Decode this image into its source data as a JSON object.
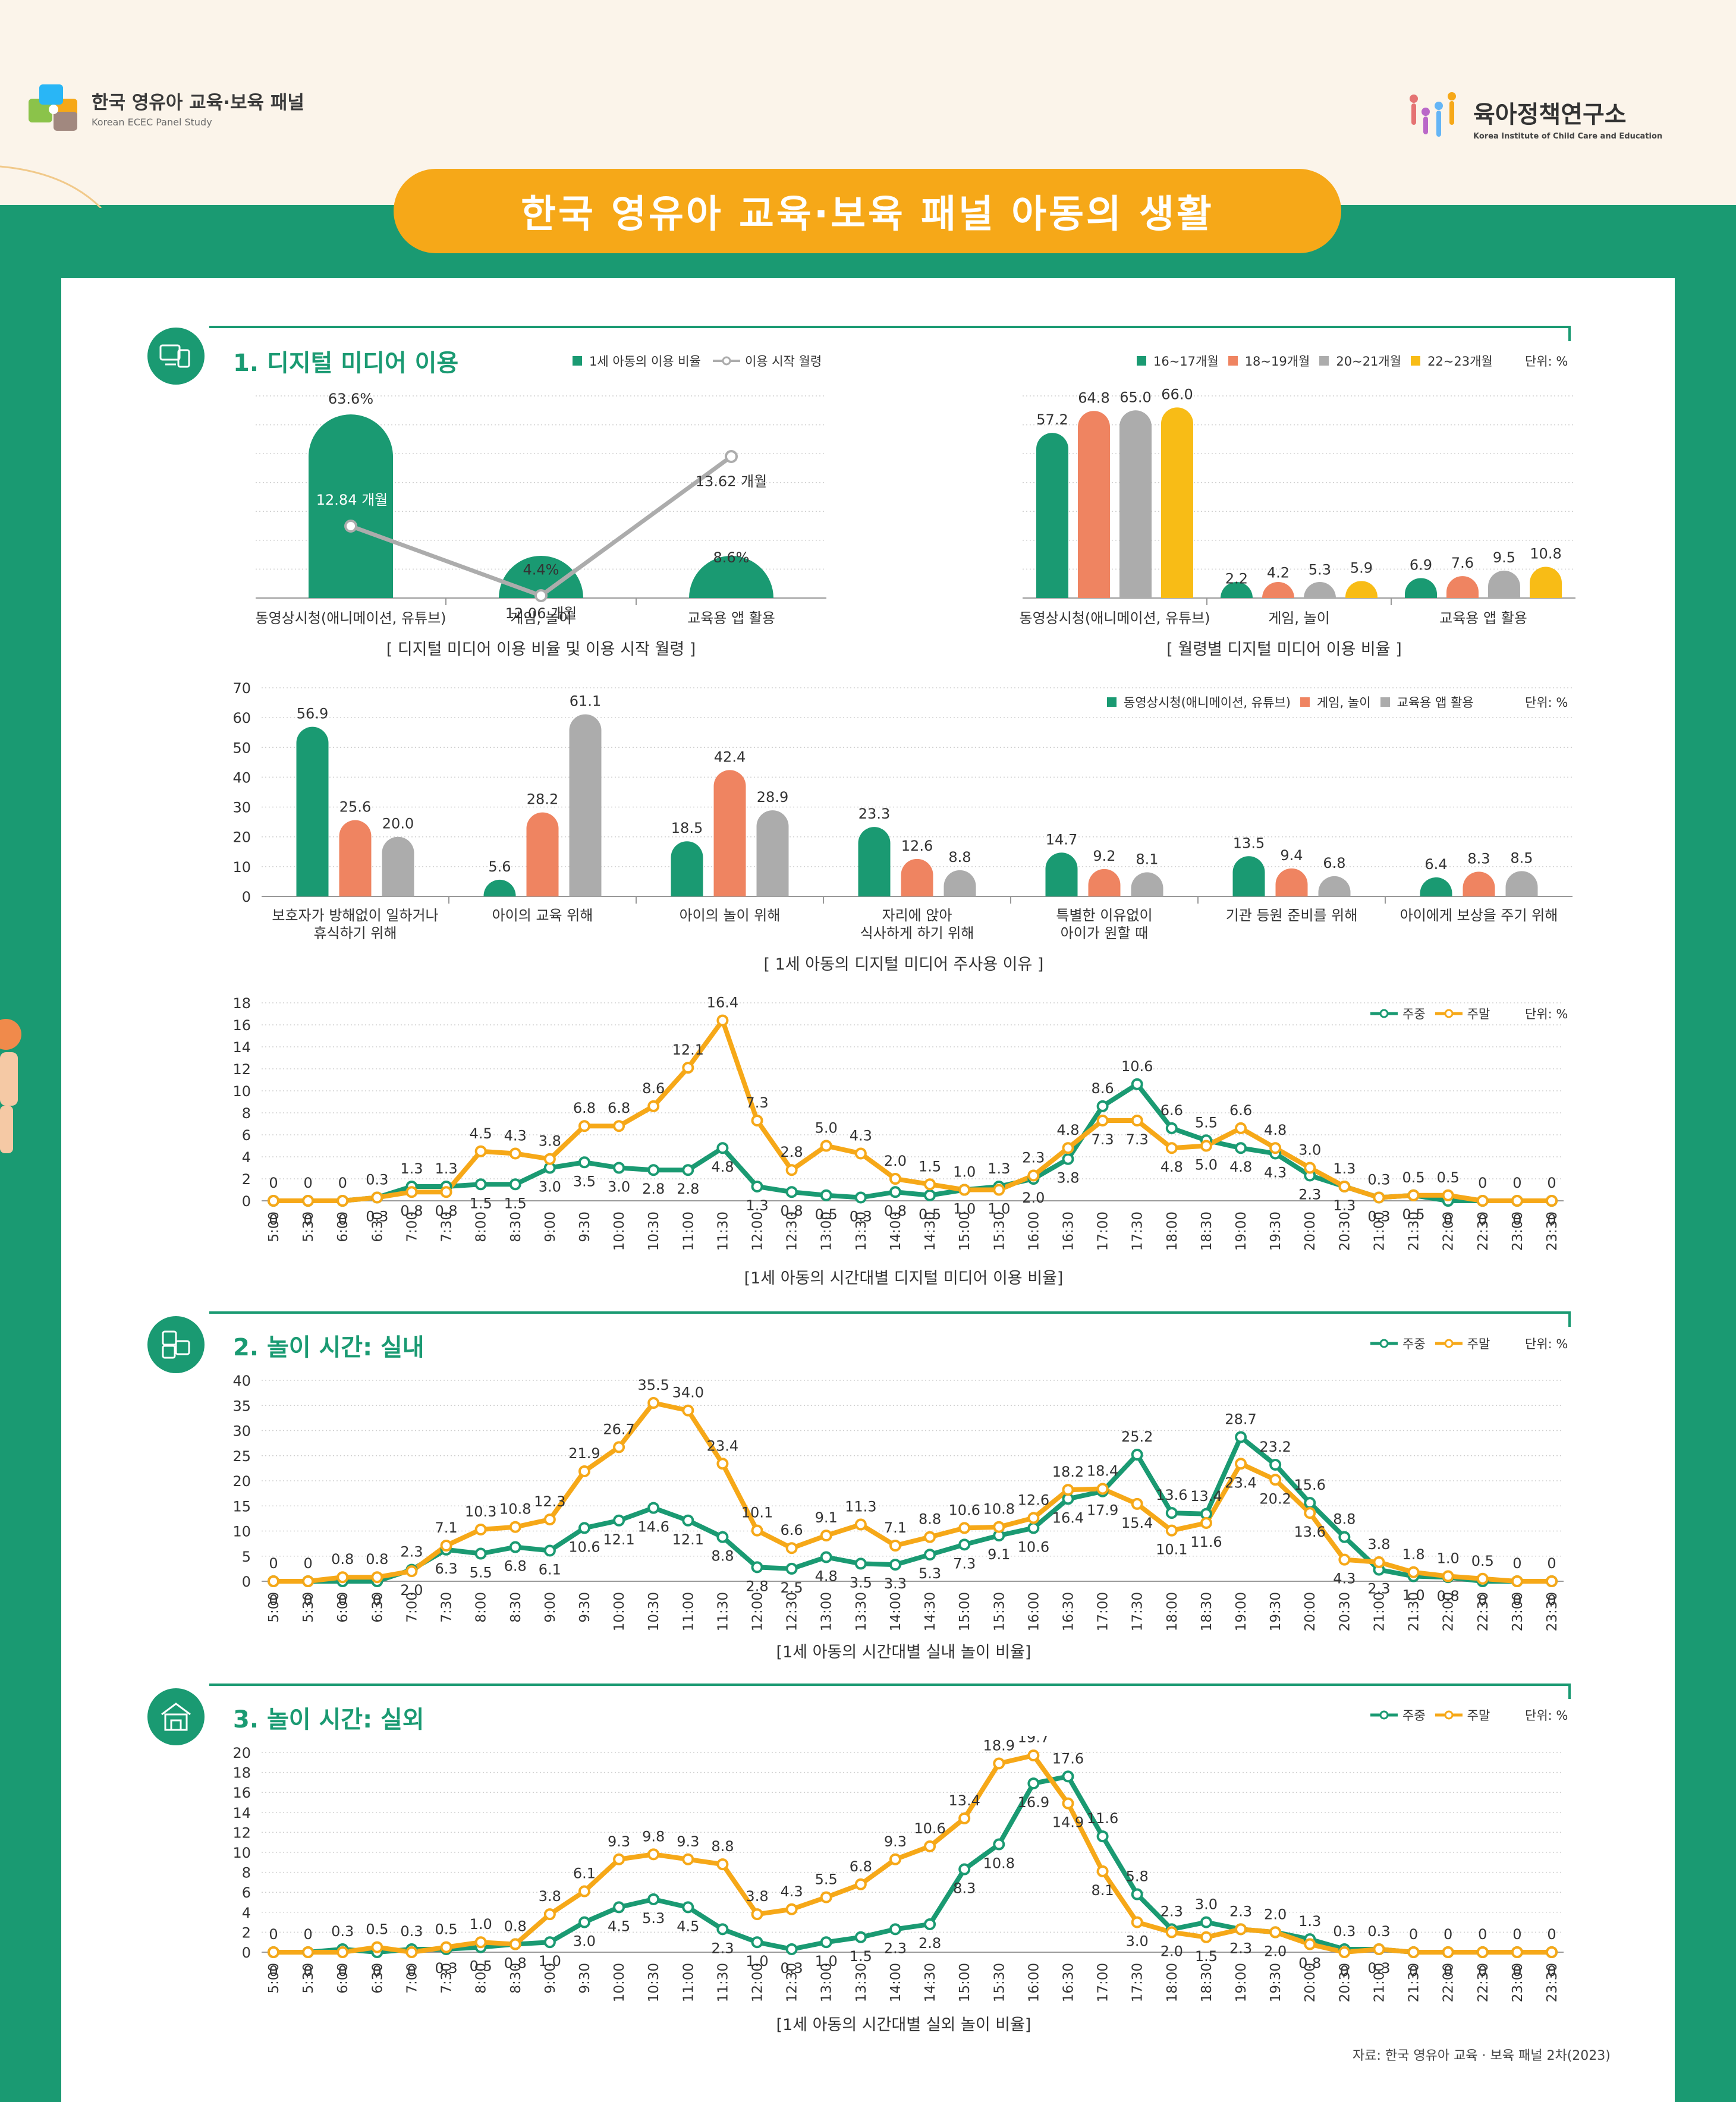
{
  "header": {
    "panel_logo_title": "한국 영유아 교육·보육 패널",
    "panel_logo_subtitle": "Korean ECEC Panel Study",
    "institute_logo_title": "육아정책연구소",
    "institute_logo_subtitle": "Korea Institute of Child Care and Education",
    "main_title": "한국 영유아 교육·보육 패널 아동의 생활"
  },
  "sections": {
    "s1": "1. 디지털 미디어 이용",
    "s2": "2. 놀이 시간: 실내",
    "s3": "3. 놀이 시간: 실외"
  },
  "colors": {
    "green": "#1a9a72",
    "orange": "#f6a818",
    "salmon": "#ef8461",
    "gray": "#acacac",
    "yellow": "#f8bc16"
  },
  "source": "자료: 한국 영유아 교육 · 보육 패널 2차(2023)",
  "chart_data": [
    {
      "id": "usage_rate_age",
      "type": "bar",
      "title": "[ 디지털 미디어 이용 비율 및 이용 시작 월령 ]",
      "categories": [
        "동영상시청(애니메이션, 유튜브)",
        "게임, 놀이",
        "교육용 앱 활용"
      ],
      "legend": [
        "1세 아동의 이용 비율",
        "이용 시작 월령"
      ],
      "series": [
        {
          "name": "1세 아동의 이용 비율",
          "values": [
            63.6,
            4.4,
            8.6
          ],
          "labels": [
            "63.6%",
            "4.4%",
            "8.6%"
          ]
        },
        {
          "name": "이용 시작 월령",
          "values": [
            12.84,
            12.06,
            13.62
          ],
          "labels": [
            "12.84 개월",
            "12.06 개월",
            "13.62 개월"
          ]
        }
      ],
      "ylim": [
        0,
        70
      ]
    },
    {
      "id": "usage_by_month_age",
      "type": "bar",
      "title": "[ 월령별 디지털 미디어 이용 비율 ]",
      "unit": "단위: %",
      "categories": [
        "동영상시청(애니메이션, 유튜브)",
        "게임, 놀이",
        "교육용 앱 활용"
      ],
      "series": [
        {
          "name": "16~17개월",
          "values": [
            57.2,
            2.2,
            6.9
          ]
        },
        {
          "name": "18~19개월",
          "values": [
            64.8,
            4.2,
            7.6
          ]
        },
        {
          "name": "20~21개월",
          "values": [
            65.0,
            5.3,
            9.5
          ]
        },
        {
          "name": "22~23개월",
          "values": [
            66.0,
            5.9,
            10.8
          ]
        }
      ],
      "ylim": [
        0,
        70
      ]
    },
    {
      "id": "reasons",
      "type": "bar",
      "title": "[ 1세 아동의 디지털 미디어 주사용 이유 ]",
      "unit": "단위: %",
      "categories": [
        "보호자가 방해없이 일하거나\n휴식하기 위해",
        "아이의 교육 위해",
        "아이의 놀이 위해",
        "자리에 앉아\n식사하게 하기 위해",
        "특별한 이유없이\n아이가 원할 때",
        "기관 등원 준비를 위해",
        "아이에게 보상을 주기 위해"
      ],
      "series": [
        {
          "name": "동영상시청(애니메이션, 유튜브)",
          "values": [
            56.9,
            5.6,
            18.5,
            23.3,
            14.7,
            13.5,
            6.4
          ]
        },
        {
          "name": "게임, 놀이",
          "values": [
            25.6,
            28.2,
            42.4,
            12.6,
            9.2,
            9.4,
            8.3
          ]
        },
        {
          "name": "교육용 앱 활용",
          "values": [
            20.0,
            61.1,
            28.9,
            8.8,
            8.1,
            6.8,
            8.5
          ]
        }
      ],
      "ylim": [
        0,
        70
      ],
      "yticks": [
        0,
        10,
        20,
        30,
        40,
        50,
        60,
        70
      ]
    },
    {
      "id": "media_time",
      "type": "line",
      "title": "[1세 아동의 시간대별 디지털 미디어 이용 비율]",
      "unit": "단위: %",
      "x": [
        "5:00",
        "5:30",
        "6:00",
        "6:30",
        "7:00",
        "7:30",
        "8:00",
        "8:30",
        "9:00",
        "9:30",
        "10:00",
        "10:30",
        "11:00",
        "11:30",
        "12:00",
        "12:30",
        "13:00",
        "13:30",
        "14:00",
        "14:30",
        "15:00",
        "15:30",
        "16:00",
        "16:30",
        "17:00",
        "17:30",
        "18:00",
        "18:30",
        "19:00",
        "19:30",
        "20:00",
        "20:30",
        "21:00",
        "21:30",
        "22:00",
        "22:30",
        "23:00",
        "23:30"
      ],
      "series": [
        {
          "name": "주중",
          "values": [
            0,
            0,
            0,
            0.3,
            1.3,
            1.3,
            1.5,
            1.5,
            3.0,
            3.5,
            3.0,
            2.8,
            2.8,
            4.8,
            1.3,
            0.8,
            0.5,
            0.3,
            0.8,
            0.5,
            1.0,
            1.3,
            2.0,
            3.8,
            8.6,
            10.6,
            6.6,
            5.5,
            4.8,
            4.3,
            2.3,
            1.3,
            0.3,
            0.5,
            0,
            0,
            0,
            0
          ]
        },
        {
          "name": "주말",
          "values": [
            0,
            0,
            0,
            0.3,
            0.8,
            0.8,
            4.5,
            4.3,
            3.8,
            6.8,
            6.8,
            8.6,
            12.1,
            16.4,
            7.3,
            2.8,
            5.0,
            4.3,
            2.0,
            1.5,
            1.0,
            1.0,
            2.3,
            4.8,
            7.3,
            7.3,
            4.8,
            5.0,
            6.6,
            4.8,
            3.0,
            1.3,
            0.3,
            0.5,
            0.5,
            0,
            0,
            0
          ]
        }
      ],
      "ylim": [
        0,
        18
      ],
      "yticks": [
        0,
        2,
        4,
        6,
        8,
        10,
        12,
        14,
        16,
        18
      ]
    },
    {
      "id": "indoor_play",
      "type": "line",
      "title": "[1세 아동의 시간대별 실내 놀이 비율]",
      "unit": "단위: %",
      "x": [
        "5:00",
        "5:30",
        "6:00",
        "6:30",
        "7:00",
        "7:30",
        "8:00",
        "8:30",
        "9:00",
        "9:30",
        "10:00",
        "10:30",
        "11:00",
        "11:30",
        "12:00",
        "12:30",
        "13:00",
        "13:30",
        "14:00",
        "14:30",
        "15:00",
        "15:30",
        "16:00",
        "16:30",
        "17:00",
        "17:30",
        "18:00",
        "18:30",
        "19:00",
        "19:30",
        "20:00",
        "20:30",
        "21:00",
        "21:30",
        "22:00",
        "22:30",
        "23:00",
        "23:30"
      ],
      "series": [
        {
          "name": "주중",
          "values": [
            0,
            0,
            0,
            0,
            2.3,
            6.3,
            5.5,
            6.8,
            6.1,
            10.6,
            12.1,
            14.6,
            12.1,
            8.8,
            2.8,
            2.5,
            4.8,
            3.5,
            3.3,
            5.3,
            7.3,
            9.1,
            10.6,
            16.4,
            17.9,
            25.2,
            13.6,
            13.4,
            28.7,
            23.2,
            15.6,
            8.8,
            2.3,
            1.0,
            0.8,
            0,
            0,
            0
          ]
        },
        {
          "name": "주말",
          "values": [
            0,
            0,
            0.8,
            0.8,
            2.0,
            7.1,
            10.3,
            10.8,
            12.3,
            21.9,
            26.7,
            35.5,
            34.0,
            23.4,
            10.1,
            6.6,
            9.1,
            11.3,
            7.1,
            8.8,
            10.6,
            10.8,
            12.6,
            18.2,
            18.4,
            15.4,
            10.1,
            11.6,
            23.4,
            20.2,
            13.6,
            4.3,
            3.8,
            1.8,
            1.0,
            0.5,
            0,
            0
          ]
        }
      ],
      "ylim": [
        0,
        40
      ],
      "yticks": [
        0,
        5,
        10,
        15,
        20,
        25,
        30,
        35,
        40
      ]
    },
    {
      "id": "outdoor_play",
      "type": "line",
      "title": "[1세 아동의 시간대별 실외 놀이 비율]",
      "unit": "단위: %",
      "x": [
        "5:00",
        "5:30",
        "6:00",
        "6:30",
        "7:00",
        "7:30",
        "8:00",
        "8:30",
        "9:00",
        "9:30",
        "10:00",
        "10:30",
        "11:00",
        "11:30",
        "12:00",
        "12:30",
        "13:00",
        "13:30",
        "14:00",
        "14:30",
        "15:00",
        "15:30",
        "16:00",
        "16:30",
        "17:00",
        "17:30",
        "18:00",
        "18:30",
        "19:00",
        "19:30",
        "20:00",
        "20:30",
        "21:00",
        "21:30",
        "22:00",
        "22:30",
        "23:00",
        "23:30"
      ],
      "series": [
        {
          "name": "주중",
          "values": [
            0,
            0,
            0.3,
            0,
            0.3,
            0.3,
            0.5,
            0.8,
            1.0,
            3.0,
            4.5,
            5.3,
            4.5,
            2.3,
            1.0,
            0.3,
            1.0,
            1.5,
            2.3,
            2.8,
            8.3,
            10.8,
            16.9,
            17.6,
            11.6,
            5.8,
            2.3,
            3.0,
            2.3,
            2.0,
            1.3,
            0.3,
            0.3,
            0,
            0,
            0,
            0,
            0
          ]
        },
        {
          "name": "주말",
          "values": [
            0,
            0,
            0,
            0.5,
            0,
            0.5,
            1.0,
            0.8,
            3.8,
            6.1,
            9.3,
            9.8,
            9.3,
            8.8,
            3.8,
            4.3,
            5.5,
            6.8,
            9.3,
            10.6,
            13.4,
            18.9,
            19.7,
            14.9,
            8.1,
            3.0,
            2.0,
            1.5,
            2.3,
            2.0,
            0.8,
            0,
            0.3,
            0,
            0,
            0,
            0,
            0
          ]
        }
      ],
      "ylim": [
        0,
        20
      ],
      "yticks": [
        0,
        2,
        4,
        6,
        8,
        10,
        12,
        14,
        16,
        18,
        20
      ]
    }
  ],
  "legends": {
    "weekday": "주중",
    "weekend": "주말",
    "unit": "단위: %"
  }
}
